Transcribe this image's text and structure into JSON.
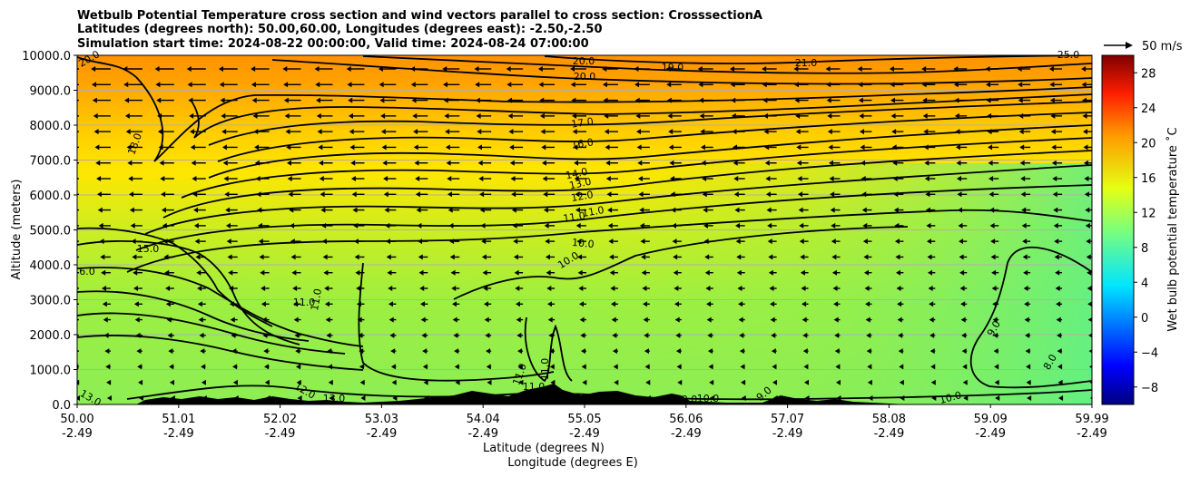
{
  "title": {
    "line1": "Wetbulb Potential Temperature cross section and wind vectors parallel to cross section: CrosssectionA",
    "line2": "Latitudes (degrees north): 50.00,60.00, Longitudes (degrees east): -2.50,-2.50",
    "line3": "Simulation start time: 2024-08-22 00:00:00, Valid time: 2024-08-24 07:00:00"
  },
  "chart_data": {
    "type": "heatmap",
    "ylabel": "Altitude (meters)",
    "xlabel": "Latitude (degrees N)",
    "xlabel2": "Longitude (degrees E)",
    "ylim": [
      0,
      10000
    ],
    "y_ticks": [
      "0.0",
      "1000.0",
      "2000.0",
      "3000.0",
      "4000.0",
      "5000.0",
      "6000.0",
      "7000.0",
      "8000.0",
      "9000.0",
      "10000.0"
    ],
    "x_ticks_lat": [
      "50.00",
      "51.01",
      "52.02",
      "53.03",
      "54.04",
      "55.05",
      "56.06",
      "57.07",
      "58.08",
      "59.09",
      "59.99"
    ],
    "x_ticks_lon": [
      "-2.49",
      "-2.49",
      "-2.49",
      "-2.49",
      "-2.49",
      "-2.49",
      "-2.49",
      "-2.49",
      "-2.49",
      "-2.49",
      "-2.49"
    ],
    "grid": "horizontal",
    "colorbar": {
      "label": "Wet bulb potential temperature ˚C",
      "range": [
        -10,
        30
      ],
      "ticks": [
        "−8",
        "−4",
        "0",
        "4",
        "8",
        "12",
        "16",
        "20",
        "24",
        "28"
      ]
    },
    "quiver_key": {
      "label": "50 m/s"
    },
    "contour_labels": [
      "20.0",
      "20.0",
      "19.0",
      "20.0",
      "21.0",
      "25.0",
      "17.0",
      "18.0",
      "16.0",
      "14.0",
      "13.0",
      "12.0",
      "11.0",
      "11.0",
      "15.0",
      "10.0",
      "10.0",
      "6.0",
      "11.0",
      "11.0",
      "9.0",
      "8.0",
      "13.0",
      "12.0",
      "13.0",
      "11.0",
      "11.0",
      "11.0",
      "10.0",
      "10.0",
      "9.0",
      "10.0"
    ]
  }
}
